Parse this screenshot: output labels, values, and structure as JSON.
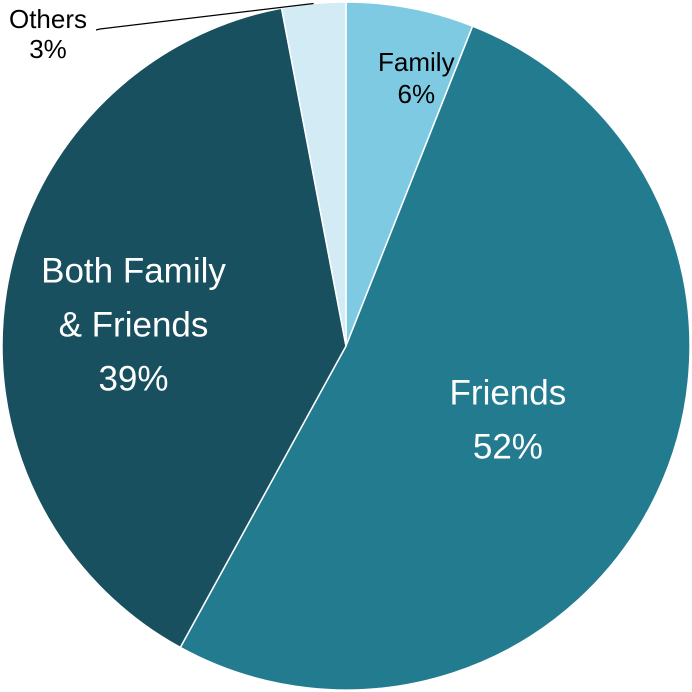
{
  "chart_data": {
    "type": "pie",
    "title": "",
    "slices": [
      {
        "label": "Family",
        "value": 6,
        "value_label": "6%",
        "color": "#7ecae3",
        "text_color": "#000000"
      },
      {
        "label": "Friends",
        "value": 52,
        "value_label": "52%",
        "color": "#237b90",
        "text_color": "#ffffff"
      },
      {
        "label": "Both Family & Friends",
        "label_lines": [
          "Both Family",
          "& Friends"
        ],
        "value": 39,
        "value_label": "39%",
        "color": "#18505f",
        "text_color": "#ffffff"
      },
      {
        "label": "Others",
        "value": 3,
        "value_label": "3%",
        "color": "#d3ebf4",
        "text_color": "#000000"
      }
    ],
    "start_angle_deg": 0,
    "direction": "clockwise",
    "legend": "none",
    "label_position": "inside, Others outside with leader line"
  }
}
